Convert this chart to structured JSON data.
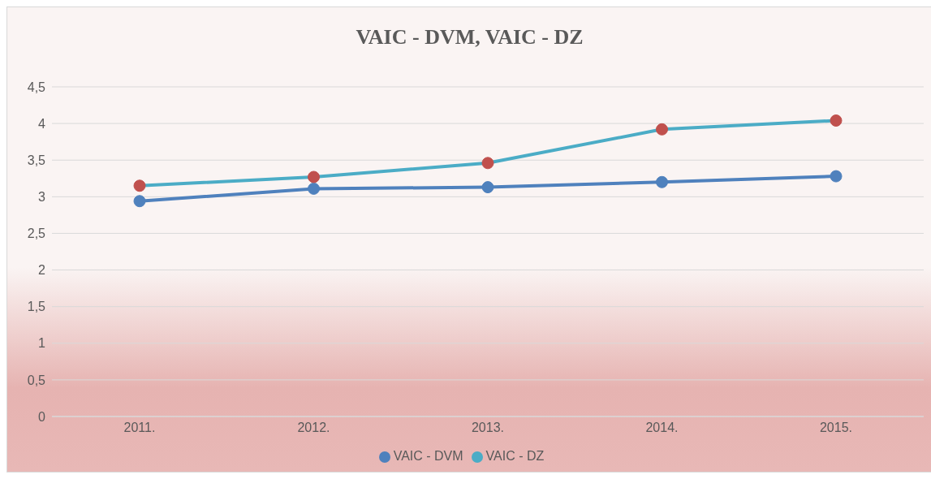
{
  "chart_data": {
    "type": "line",
    "title": "VAIC - DVM, VAIC - DZ",
    "categories": [
      "2011.",
      "2012.",
      "2013.",
      "2014.",
      "2015."
    ],
    "series": [
      {
        "name": "VAIC - DVM",
        "color": "#4f81bd",
        "values": [
          2.94,
          3.11,
          3.13,
          3.2,
          3.28
        ]
      },
      {
        "name": "VAIC - DZ",
        "color": "#4bacc6",
        "values": [
          3.15,
          3.27,
          3.46,
          3.92,
          4.04
        ]
      }
    ],
    "ylim": [
      0,
      4.5
    ],
    "yticks": [
      0,
      {
        "value": 0.5,
        "label": "0,5"
      },
      1,
      {
        "value": 1.5,
        "label": "1,5"
      },
      2,
      {
        "value": 2.5,
        "label": "2,5"
      },
      3,
      {
        "value": 3.5,
        "label": "3,5"
      },
      4,
      {
        "value": 4.5,
        "label": "4,5"
      }
    ],
    "grid": "y",
    "legend": "bottom",
    "marker": "circle",
    "line_style": "solid"
  }
}
